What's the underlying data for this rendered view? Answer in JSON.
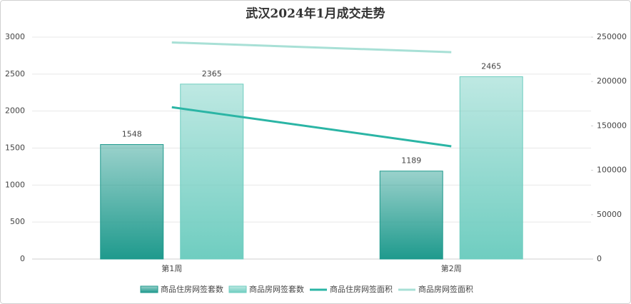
{
  "chart_data": {
    "type": "bar-line",
    "title": "武汉2024年1月成交走势",
    "categories": [
      "第1周",
      "第2周"
    ],
    "series": [
      {
        "name": "商品住房网签套数",
        "type": "bar",
        "color": "#1f9a8d",
        "values": [
          1548,
          1189
        ]
      },
      {
        "name": "商品房网签套数",
        "type": "bar",
        "color": "#6fcdc0",
        "values": [
          2365,
          2465
        ]
      },
      {
        "name": "商品住房网签面积",
        "type": "line",
        "axis": "y2",
        "color": "#2bb5a5",
        "values": [
          171000,
          127000
        ]
      },
      {
        "name": "商品房网签面积",
        "type": "line",
        "axis": "y2",
        "color": "#a8e0d6",
        "values": [
          244000,
          233000
        ]
      }
    ],
    "ylim": [
      0,
      3000
    ],
    "yticks": [
      0,
      500,
      1000,
      1500,
      2000,
      2500,
      3000
    ],
    "y2lim": [
      0,
      250000
    ],
    "y2ticks": [
      0,
      50000,
      100000,
      150000,
      200000,
      250000
    ],
    "grid": true,
    "legend": "bottom",
    "data_labels": true
  }
}
